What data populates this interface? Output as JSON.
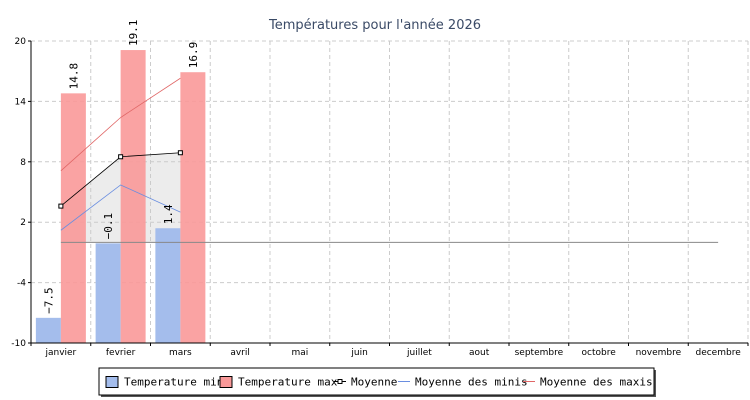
{
  "chart_data": {
    "type": "bar",
    "title": "Températures pour l'année 2026",
    "categories": [
      "janvier",
      "fevrier",
      "mars",
      "avril",
      "mai",
      "juin",
      "juillet",
      "aout",
      "septembre",
      "octobre",
      "novembre",
      "decembre"
    ],
    "ylim": [
      -10,
      20
    ],
    "yticks": [
      -10,
      -4,
      2,
      8,
      14,
      20
    ],
    "grid": true,
    "legend_position": "bottom",
    "series": [
      {
        "name": "Temperature min",
        "kind": "bar",
        "color": "#a4bdec",
        "values": [
          -7.5,
          -0.1,
          1.4,
          null,
          null,
          null,
          null,
          null,
          null,
          null,
          null,
          null
        ],
        "labels": [
          "−7.5",
          "−0.1",
          "1.4"
        ]
      },
      {
        "name": "Temperature max",
        "kind": "bar",
        "color": "#f99999",
        "values": [
          14.8,
          19.1,
          16.9,
          null,
          null,
          null,
          null,
          null,
          null,
          null,
          null,
          null
        ],
        "labels": [
          "14.8",
          "19.1",
          "16.9"
        ]
      },
      {
        "name": "Moyenne",
        "kind": "line",
        "color": "#000000",
        "marker": "square",
        "values": [
          3.6,
          8.5,
          8.9,
          null,
          null,
          null,
          null,
          null,
          null,
          null,
          null,
          null
        ]
      },
      {
        "name": "Moyenne des minis",
        "kind": "line",
        "color": "#6a8ee0",
        "values": [
          1.2,
          5.7,
          3.0,
          null,
          null,
          null,
          null,
          null,
          null,
          null,
          null,
          null
        ]
      },
      {
        "name": "Moyenne des maxis",
        "kind": "line",
        "color": "#e06666",
        "values": [
          7.1,
          12.4,
          16.3,
          null,
          null,
          null,
          null,
          null,
          null,
          null,
          null,
          null
        ]
      }
    ],
    "reference_line": {
      "value": 0,
      "color": "#888888"
    }
  }
}
